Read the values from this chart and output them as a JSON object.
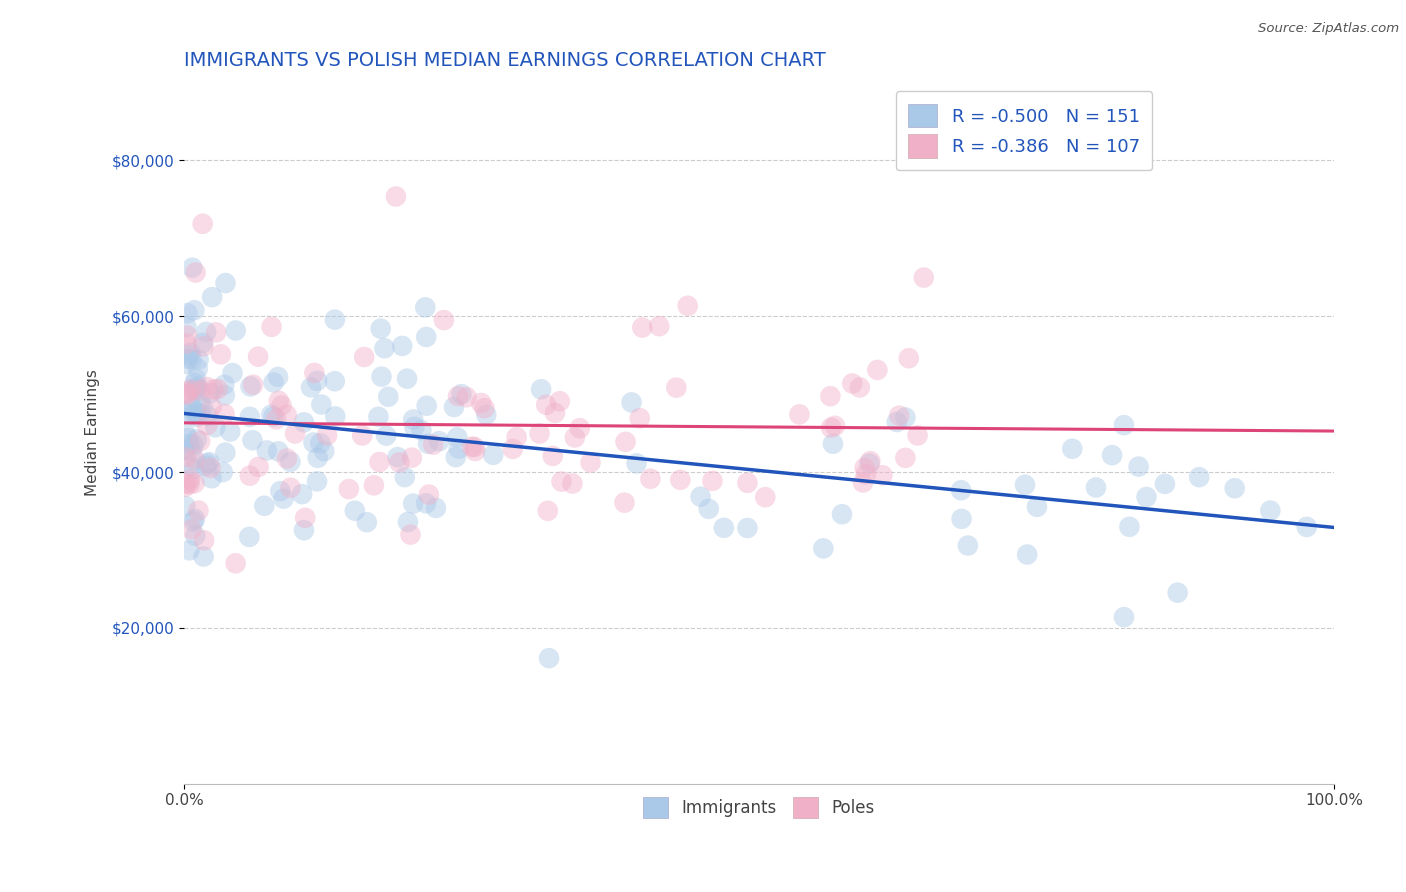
{
  "title": "IMMIGRANTS VS POLISH MEDIAN EARNINGS CORRELATION CHART",
  "source": "Source: ZipAtlas.com",
  "ylabel": "Median Earnings",
  "xlim": [
    0,
    1.0
  ],
  "ylim": [
    0,
    90000
  ],
  "yticks": [
    20000,
    40000,
    60000,
    80000
  ],
  "ytick_labels": [
    "$20,000",
    "$40,000",
    "$60,000",
    "$80,000"
  ],
  "xtick_labels": [
    "0.0%",
    "100.0%"
  ],
  "immigrants": {
    "R": -0.5,
    "N": 151,
    "color": "#aac8e8",
    "edge_color": "#88aadd",
    "line_color": "#2255bb",
    "label": "Immigrants"
  },
  "poles": {
    "R": -0.386,
    "N": 107,
    "color": "#f0b0c8",
    "edge_color": "#dd88aa",
    "line_color": "#dd4477",
    "label": "Poles"
  },
  "legend_color": "#2255bb",
  "title_color": "#2255bb",
  "grid_color": "#cccccc",
  "background_color": "#ffffff",
  "title_fontsize": 14,
  "axis_label_fontsize": 11,
  "tick_fontsize": 11,
  "legend_fontsize": 13,
  "scatter_size": 220,
  "scatter_alpha": 0.45
}
